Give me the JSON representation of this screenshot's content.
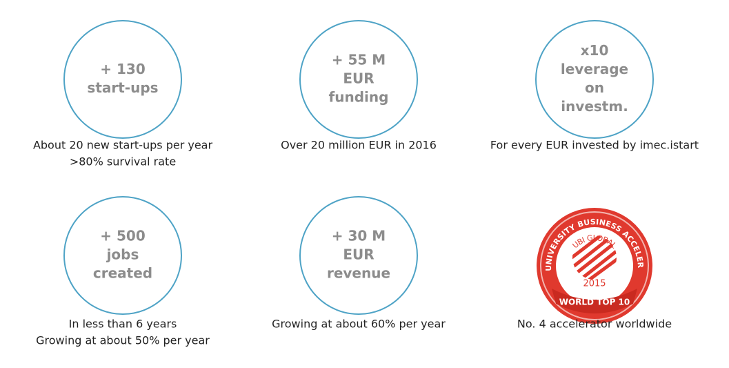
{
  "stats": [
    {
      "lines": [
        "+ 130",
        "start-ups"
      ],
      "caption": [
        "About 20 new start-ups per year",
        ">80% survival rate"
      ]
    },
    {
      "lines": [
        "+ 55 M",
        "EUR",
        "funding"
      ],
      "caption": [
        "Over 20 million EUR in 2016"
      ]
    },
    {
      "lines": [
        "x10",
        "leverage",
        "on",
        "investm."
      ],
      "caption": [
        "For every EUR invested by imec.istart"
      ]
    },
    {
      "lines": [
        "+ 500",
        "jobs",
        "created"
      ],
      "caption": [
        "In less than 6 years",
        "Growing at about 50% per year"
      ]
    },
    {
      "lines": [
        "+ 30 M",
        "EUR",
        "revenue"
      ],
      "caption": [
        "Growing at about 60% per year"
      ]
    }
  ],
  "badge": {
    "arc_text": "TOP UNIVERSITY BUSINESS ACCELERATOR",
    "brand": "UBI GLOBAL",
    "year": "2015",
    "ribbon": "WORLD TOP 10",
    "caption": [
      "No. 4 accelerator worldwide"
    ]
  }
}
